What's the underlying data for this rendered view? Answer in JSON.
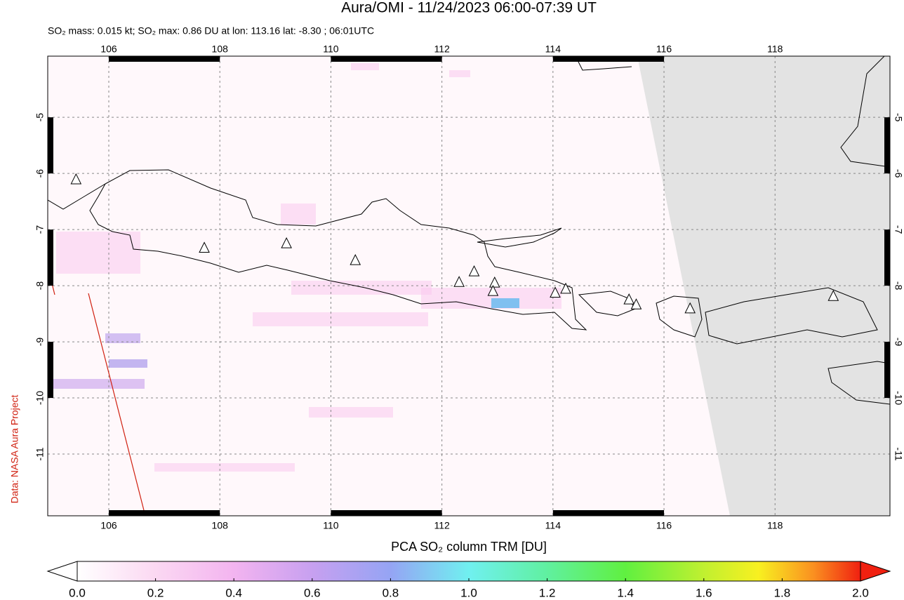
{
  "map": {
    "title": "Aura/OMI - 11/24/2023 06:00-07:39 UT",
    "subtitle": "SO₂ mass: 0.015 kt; SO₂ max: 0.86 DU at lon: 113.16 lat: -8.30 ; 06:01UTC",
    "credit": "Data: NASA Aura Project",
    "lonlim": [
      104.9,
      120.07
    ],
    "latlim": [
      -12.1,
      -3.91
    ],
    "lonticks": [
      106,
      108,
      110,
      112,
      114,
      116,
      118
    ],
    "latticks": [
      -5,
      -6,
      -7,
      -8,
      -9,
      -10,
      -11
    ],
    "grid": true,
    "volcanoes": [
      {
        "lon": 105.41,
        "lat": -6.11
      },
      {
        "lon": 107.72,
        "lat": -7.33
      },
      {
        "lon": 109.2,
        "lat": -7.25
      },
      {
        "lon": 110.44,
        "lat": -7.55
      },
      {
        "lon": 112.31,
        "lat": -7.94
      },
      {
        "lon": 112.58,
        "lat": -7.75
      },
      {
        "lon": 112.95,
        "lat": -7.95
      },
      {
        "lon": 112.92,
        "lat": -8.1
      },
      {
        "lon": 114.04,
        "lat": -8.13
      },
      {
        "lon": 114.23,
        "lat": -8.06
      },
      {
        "lon": 115.37,
        "lat": -8.25
      },
      {
        "lon": 115.5,
        "lat": -8.34
      },
      {
        "lon": 116.47,
        "lat": -8.41
      },
      {
        "lon": 119.05,
        "lat": -8.19
      }
    ],
    "colorbar": {
      "label": "PCA SO₂ column TRM [DU]",
      "lim": [
        0,
        2
      ],
      "ticks": [
        {
          "value": 0,
          "label": "0.0"
        },
        0.2,
        0.4,
        0.6,
        0.8,
        {
          "value": 1,
          "label": "1.0"
        },
        1.2,
        1.4,
        1.6,
        1.8,
        {
          "value": 2,
          "label": "2.0"
        }
      ]
    }
  }
}
